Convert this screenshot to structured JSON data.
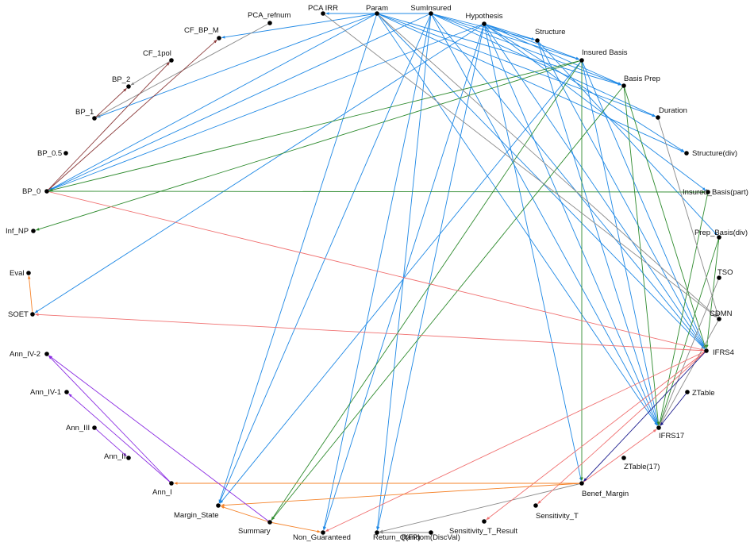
{
  "colors": {
    "blue": "#1e88e5",
    "green": "#2e8b2e",
    "gray": "#8a8a8a",
    "salmon": "#f07070",
    "orange": "#f5832a",
    "purple": "#8a2be2",
    "brown": "#8b3a3a",
    "navy": "#1a1a8c"
  },
  "nodes": [
    {
      "id": "PCA_IRR",
      "label": "PCA IRR"
    },
    {
      "id": "Param",
      "label": "Param"
    },
    {
      "id": "SumInsured",
      "label": "SumInsured"
    },
    {
      "id": "Hypothesis",
      "label": "Hypothesis"
    },
    {
      "id": "Structure",
      "label": "Structure"
    },
    {
      "id": "InsuredBasis",
      "label": "Insured Basis"
    },
    {
      "id": "BasisPrep",
      "label": "Basis Prep"
    },
    {
      "id": "Duration",
      "label": "Duration"
    },
    {
      "id": "StructureDiv",
      "label": "Structure(div)"
    },
    {
      "id": "InsuredBasisPart",
      "label": "Insured_Basis(part)"
    },
    {
      "id": "PrepBasisDiv",
      "label": "Prep_Basis(div)"
    },
    {
      "id": "TSO",
      "label": "TSO"
    },
    {
      "id": "CDMN",
      "label": "CDMN"
    },
    {
      "id": "IFRS4",
      "label": "IFRS4"
    },
    {
      "id": "ZTable",
      "label": "ZTable"
    },
    {
      "id": "IFRS17",
      "label": "IFRS17"
    },
    {
      "id": "ZTable17",
      "label": "ZTable(17)"
    },
    {
      "id": "BenefMargin",
      "label": "Benef_Margin"
    },
    {
      "id": "SensitivityT",
      "label": "Sensitivity_T"
    },
    {
      "id": "SensitivityTResult",
      "label": "Sensitivity_T_Result"
    },
    {
      "id": "RandomDiscVal",
      "label": "Random(DiscVal)"
    },
    {
      "id": "ReturnQFP",
      "label": "Return_Q(FP)"
    },
    {
      "id": "NonGuaranteed",
      "label": "Non_Guaranteed"
    },
    {
      "id": "Summary",
      "label": "Summary"
    },
    {
      "id": "MarginState",
      "label": "Margin_State"
    },
    {
      "id": "AnnI",
      "label": "Ann_I"
    },
    {
      "id": "AnnII",
      "label": "Ann_II"
    },
    {
      "id": "AnnIII",
      "label": "Ann_III"
    },
    {
      "id": "AnnIV1",
      "label": "Ann_IV-1"
    },
    {
      "id": "AnnIV2",
      "label": "Ann_IV-2"
    },
    {
      "id": "SOET",
      "label": "SOET"
    },
    {
      "id": "Eval",
      "label": "Eval"
    },
    {
      "id": "InfNP",
      "label": "Inf_NP"
    },
    {
      "id": "BP0",
      "label": "BP_0"
    },
    {
      "id": "BP05",
      "label": "BP_0.5"
    },
    {
      "id": "BP1",
      "label": "BP_1"
    },
    {
      "id": "BP2",
      "label": "BP_2"
    },
    {
      "id": "CF1pol",
      "label": "CF_1pol"
    },
    {
      "id": "CFBPM",
      "label": "CF_BP_M"
    },
    {
      "id": "PCArefnum",
      "label": "PCA_refnum"
    }
  ],
  "edges": [
    {
      "from": "Param",
      "to": "CFBPM",
      "color": "blue"
    },
    {
      "from": "Param",
      "to": "BP1",
      "color": "blue"
    },
    {
      "from": "Param",
      "to": "BP0",
      "color": "blue"
    },
    {
      "from": "Param",
      "to": "StructureDiv",
      "color": "blue"
    },
    {
      "from": "Param",
      "to": "IFRS4",
      "color": "blue"
    },
    {
      "from": "Param",
      "to": "IFRS17",
      "color": "blue"
    },
    {
      "from": "Param",
      "to": "Duration",
      "color": "blue"
    },
    {
      "from": "Param",
      "to": "BasisPrep",
      "color": "blue"
    },
    {
      "from": "Param",
      "to": "MarginState",
      "color": "blue"
    },
    {
      "from": "SumInsured",
      "to": "PCA_IRR",
      "color": "blue"
    },
    {
      "from": "SumInsured",
      "to": "BP0",
      "color": "blue"
    },
    {
      "from": "SumInsured",
      "to": "Structure",
      "color": "blue"
    },
    {
      "from": "SumInsured",
      "to": "InsuredBasis",
      "color": "blue"
    },
    {
      "from": "SumInsured",
      "to": "BasisPrep",
      "color": "blue"
    },
    {
      "from": "SumInsured",
      "to": "Duration",
      "color": "blue"
    },
    {
      "from": "SumInsured",
      "to": "IFRS4",
      "color": "blue"
    },
    {
      "from": "SumInsured",
      "to": "IFRS17",
      "color": "blue"
    },
    {
      "from": "SumInsured",
      "to": "NonGuaranteed",
      "color": "blue"
    },
    {
      "from": "SumInsured",
      "to": "ReturnQFP",
      "color": "blue"
    },
    {
      "from": "SumInsured",
      "to": "MarginState",
      "color": "blue"
    },
    {
      "from": "Hypothesis",
      "to": "Structure",
      "color": "blue"
    },
    {
      "from": "Hypothesis",
      "to": "InsuredBasis",
      "color": "blue"
    },
    {
      "from": "Hypothesis",
      "to": "BasisPrep",
      "color": "blue"
    },
    {
      "from": "Hypothesis",
      "to": "StructureDiv",
      "color": "blue"
    },
    {
      "from": "Hypothesis",
      "to": "InsuredBasisPart",
      "color": "blue"
    },
    {
      "from": "Hypothesis",
      "to": "IFRS4",
      "color": "blue"
    },
    {
      "from": "Hypothesis",
      "to": "IFRS17",
      "color": "blue"
    },
    {
      "from": "Hypothesis",
      "to": "BenefMargin",
      "color": "blue"
    },
    {
      "from": "Hypothesis",
      "to": "SOET",
      "color": "blue"
    },
    {
      "from": "Hypothesis",
      "to": "NonGuaranteed",
      "color": "blue"
    },
    {
      "from": "Hypothesis",
      "to": "ReturnQFP",
      "color": "blue"
    },
    {
      "from": "Hypothesis",
      "to": "BP0",
      "color": "blue"
    },
    {
      "from": "Structure",
      "to": "IFRS4",
      "color": "blue"
    },
    {
      "from": "Structure",
      "to": "IFRS17",
      "color": "blue"
    },
    {
      "from": "Structure",
      "to": "PrepBasisDiv",
      "color": "blue"
    },
    {
      "from": "InsuredBasis",
      "to": "IFRS4",
      "color": "blue"
    },
    {
      "from": "InsuredBasis",
      "to": "IFRS17",
      "color": "blue"
    },
    {
      "from": "InsuredBasis",
      "to": "BP0",
      "color": "green"
    },
    {
      "from": "InsuredBasis",
      "to": "InfNP",
      "color": "green"
    },
    {
      "from": "InsuredBasis",
      "to": "Summary",
      "color": "green"
    },
    {
      "from": "InsuredBasis",
      "to": "BenefMargin",
      "color": "green"
    },
    {
      "from": "InsuredBasis",
      "to": "MarginState",
      "color": "blue"
    },
    {
      "from": "BasisPrep",
      "to": "IFRS17",
      "color": "green"
    },
    {
      "from": "BasisPrep",
      "to": "IFRS4",
      "color": "green"
    },
    {
      "from": "BasisPrep",
      "to": "Summary",
      "color": "green"
    },
    {
      "from": "BP0",
      "to": "InsuredBasisPart",
      "color": "green"
    },
    {
      "from": "PrepBasisDiv",
      "to": "IFRS17",
      "color": "green"
    },
    {
      "from": "PrepBasisDiv",
      "to": "IFRS4",
      "color": "green"
    },
    {
      "from": "InsuredBasisPart",
      "to": "IFRS17",
      "color": "green"
    },
    {
      "from": "PCArefnum",
      "to": "BP1",
      "color": "gray"
    },
    {
      "from": "PCA_IRR",
      "to": "CDMN",
      "color": "gray"
    },
    {
      "from": "Param",
      "to": "CDMN",
      "color": "gray"
    },
    {
      "from": "Duration",
      "to": "CDMN",
      "color": "gray"
    },
    {
      "from": "TSO",
      "to": "IFRS17",
      "color": "gray"
    },
    {
      "from": "CDMN",
      "to": "IFRS17",
      "color": "gray"
    },
    {
      "from": "BenefMargin",
      "to": "ReturnQFP",
      "color": "gray"
    },
    {
      "from": "RandomDiscVal",
      "to": "ReturnQFP",
      "color": "gray"
    },
    {
      "from": "CF1pol",
      "to": "BP2",
      "color": "gray"
    },
    {
      "from": "BP0",
      "to": "IFRS4",
      "color": "salmon"
    },
    {
      "from": "IFRS4",
      "to": "SOET",
      "color": "salmon"
    },
    {
      "from": "IFRS4",
      "to": "SensitivityT",
      "color": "salmon"
    },
    {
      "from": "IFRS4",
      "to": "NonGuaranteed",
      "color": "salmon"
    },
    {
      "from": "IFRS4",
      "to": "SensitivityTResult",
      "color": "salmon"
    },
    {
      "from": "BenefMargin",
      "to": "IFRS17",
      "color": "salmon"
    },
    {
      "from": "BenefMargin",
      "to": "AnnI",
      "color": "orange"
    },
    {
      "from": "BenefMargin",
      "to": "MarginState",
      "color": "orange"
    },
    {
      "from": "Summary",
      "to": "MarginState",
      "color": "orange"
    },
    {
      "from": "Summary",
      "to": "NonGuaranteed",
      "color": "orange"
    },
    {
      "from": "SOET",
      "to": "Eval",
      "color": "orange"
    },
    {
      "from": "AnnI",
      "to": "AnnIV2",
      "color": "purple"
    },
    {
      "from": "AnnI",
      "to": "AnnIV1",
      "color": "purple"
    },
    {
      "from": "Summary",
      "to": "AnnIV2",
      "color": "purple"
    },
    {
      "from": "AnnIII",
      "to": "AnnII",
      "color": "purple"
    },
    {
      "from": "BP0",
      "to": "CFBPM",
      "color": "brown"
    },
    {
      "from": "BP1",
      "to": "BP2",
      "color": "brown"
    },
    {
      "from": "BP0",
      "to": "CF1pol",
      "color": "brown"
    },
    {
      "from": "IFRS4",
      "to": "BenefMargin",
      "color": "navy"
    },
    {
      "from": "ZTable",
      "to": "IFRS17",
      "color": "navy"
    }
  ]
}
